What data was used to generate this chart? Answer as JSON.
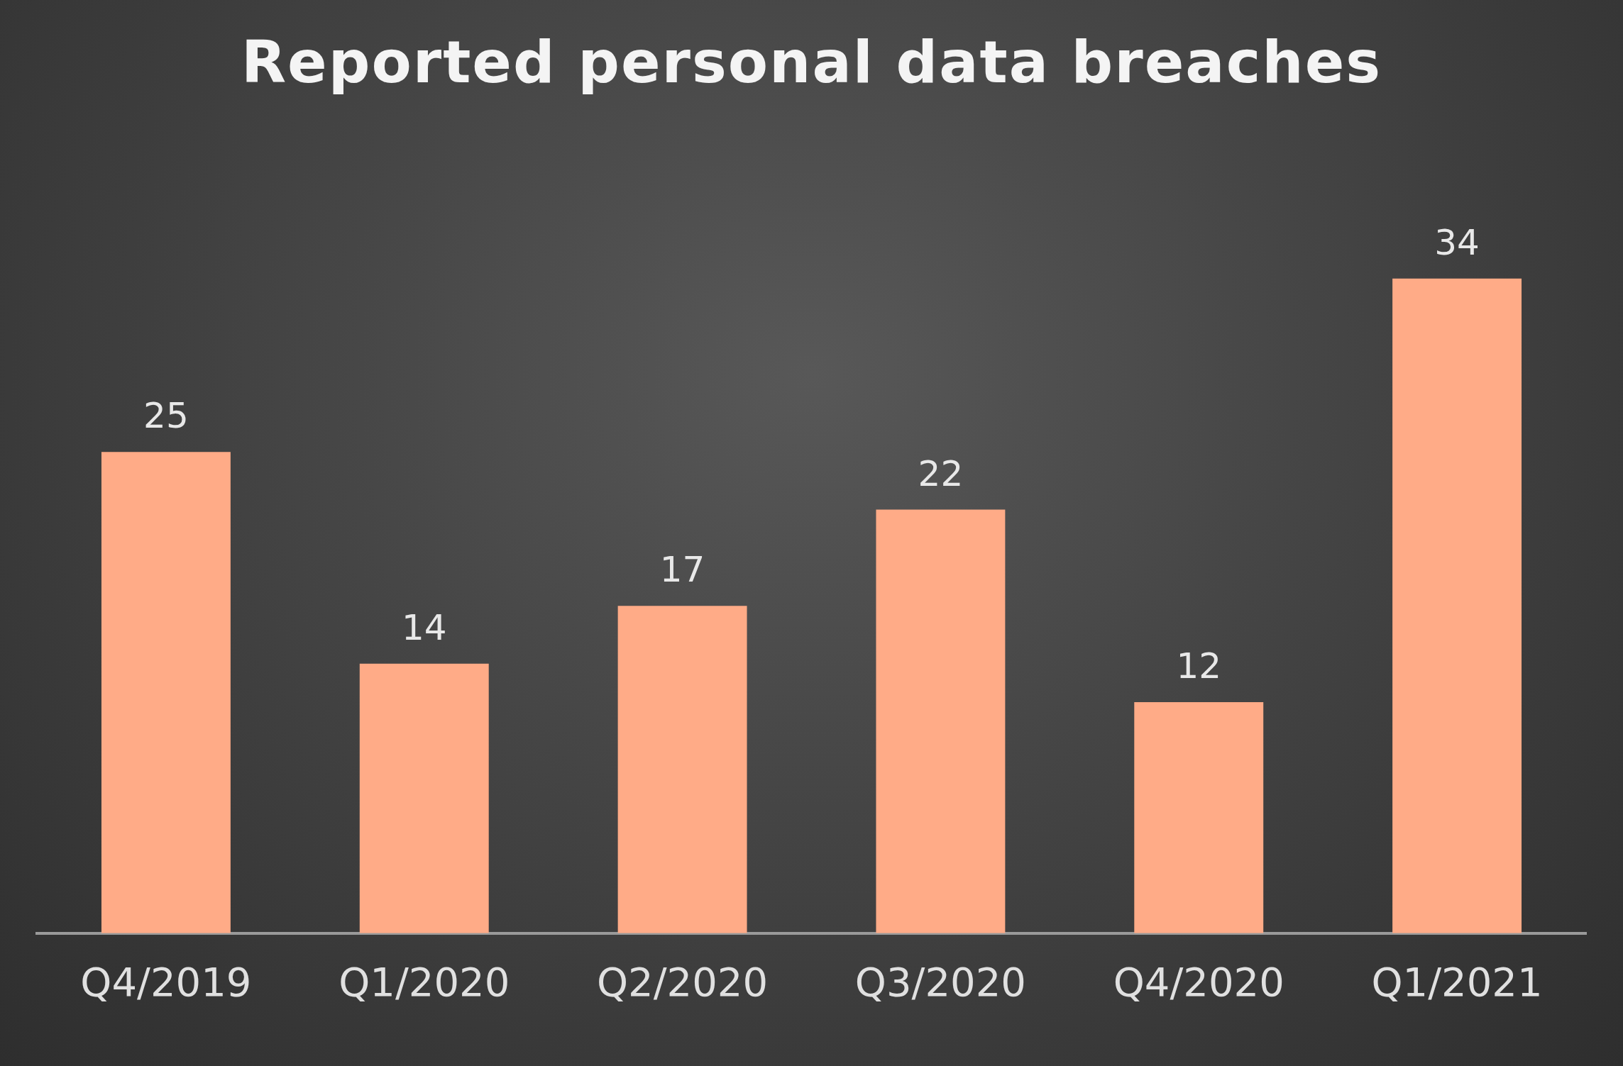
{
  "chart_data": {
    "type": "bar",
    "title": "Reported personal data breaches",
    "categories": [
      "Q4/2019",
      "Q1/2020",
      "Q2/2020",
      "Q3/2020",
      "Q4/2020",
      "Q1/2021"
    ],
    "values": [
      25,
      14,
      17,
      22,
      12,
      34
    ],
    "color": "#ffab87",
    "data_labels": true
  }
}
